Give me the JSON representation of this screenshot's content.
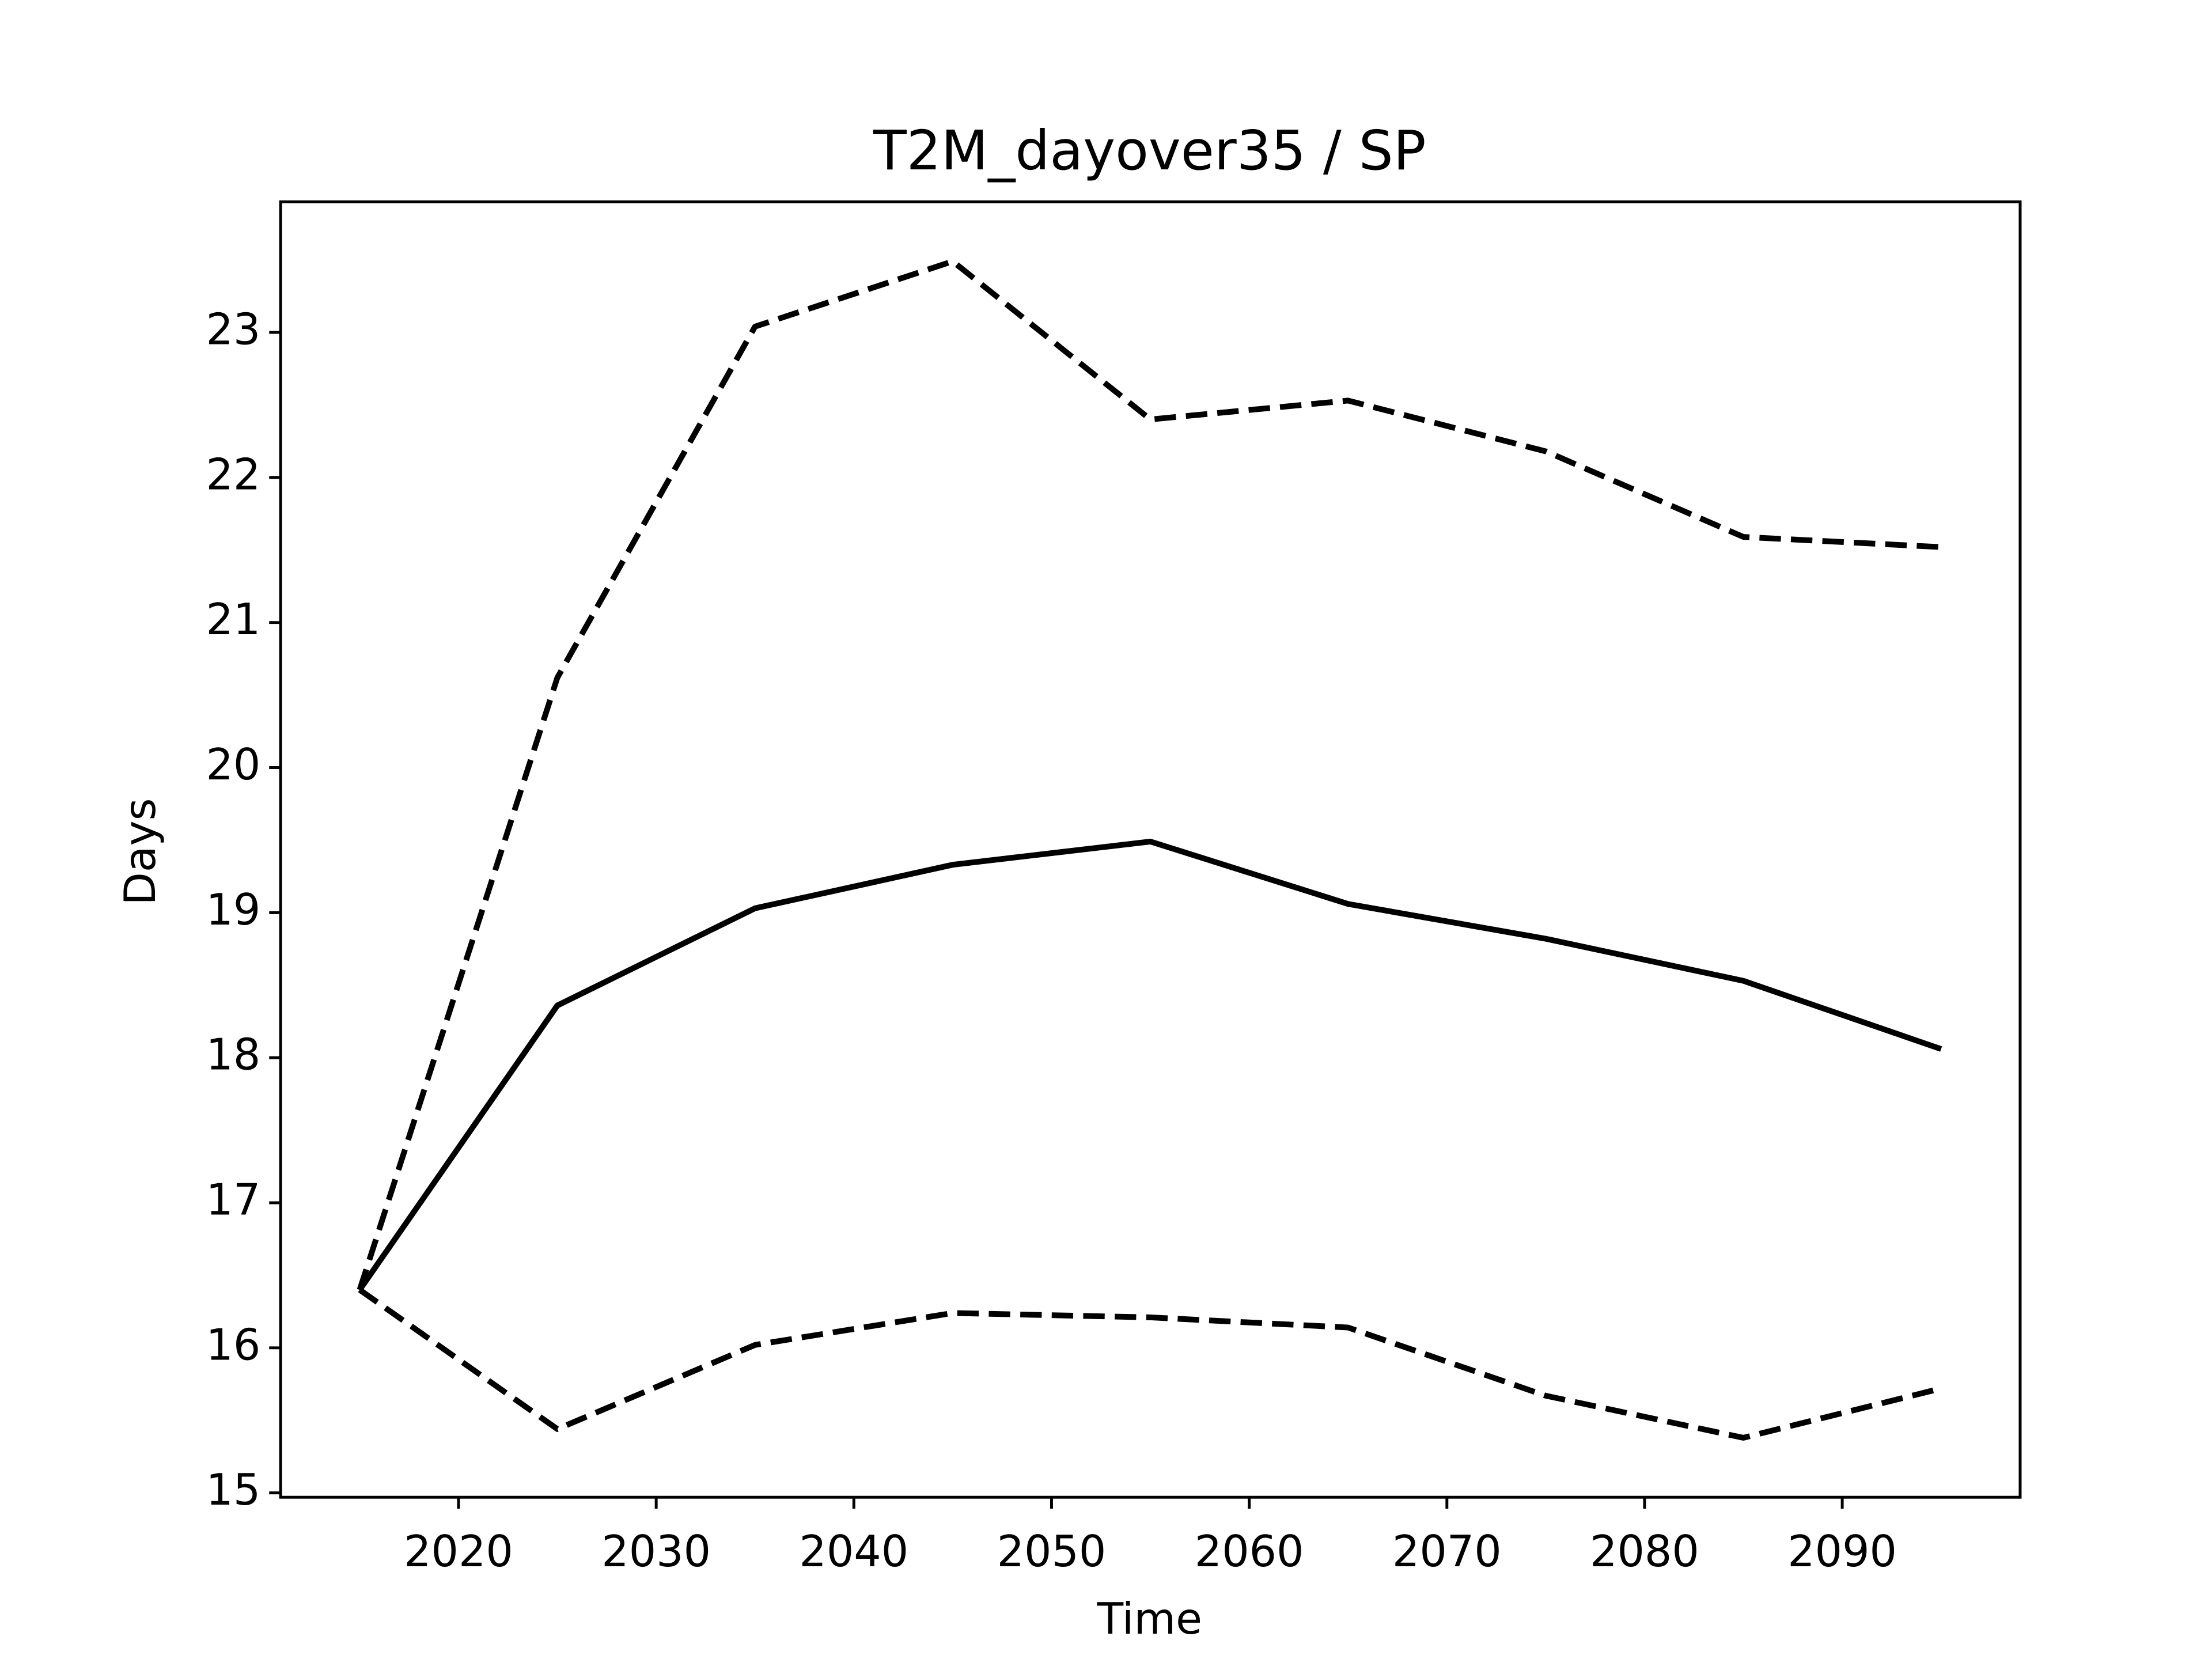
{
  "chart_data": {
    "type": "line",
    "title": "T2M_dayover35 / SP",
    "x_label": "Time",
    "y_label": "Days",
    "x": [
      2015,
      2025,
      2035,
      2045,
      2055,
      2065,
      2075,
      2085,
      2095
    ],
    "series": [
      {
        "color": "#000000",
        "linestyle": "solid",
        "values": [
          16.4,
          18.36,
          19.03,
          19.33,
          19.49,
          19.06,
          18.82,
          18.53,
          18.06
        ]
      },
      {
        "color": "#000000",
        "linestyle": "dashed",
        "values": [
          16.4,
          20.62,
          23.04,
          23.49,
          22.4,
          22.53,
          22.18,
          21.59,
          21.52
        ]
      },
      {
        "color": "#000000",
        "linestyle": "dashed",
        "values": [
          16.4,
          15.44,
          16.02,
          16.24,
          16.21,
          16.14,
          15.67,
          15.38,
          15.72
        ]
      }
    ],
    "xlim": [
      2011,
      2099
    ],
    "xticks": [
      2020,
      2030,
      2040,
      2050,
      2060,
      2070,
      2080,
      2090
    ],
    "ylim": [
      14.97,
      23.9
    ],
    "yticks": [
      15,
      16,
      17,
      18,
      19,
      20,
      21,
      22,
      23
    ],
    "grid": false
  }
}
